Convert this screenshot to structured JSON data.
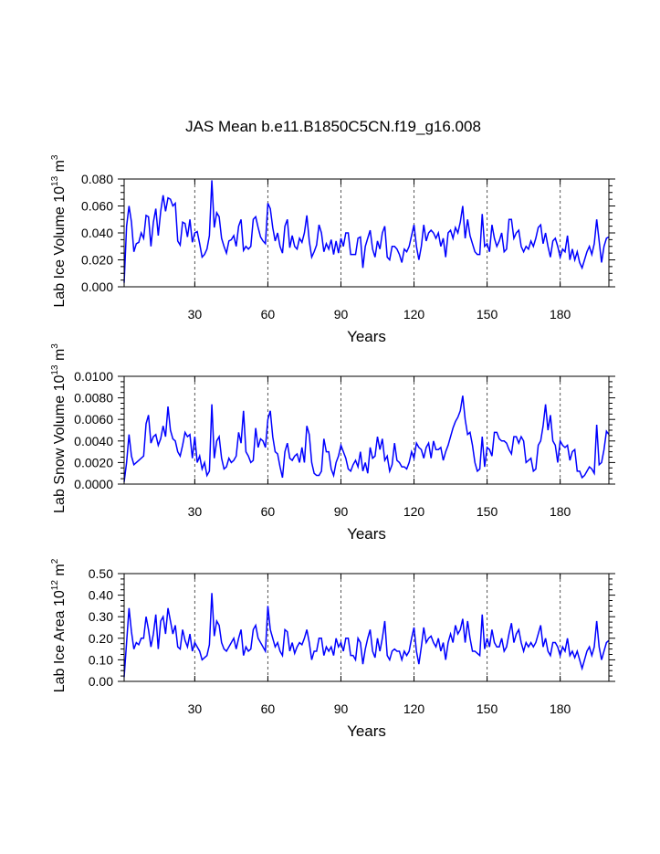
{
  "title": "JAS Mean b.e11.B1850C5CN.f19_g16.008",
  "colors": {
    "series": "#0000ff",
    "axis": "#000000",
    "grid": "#555555"
  },
  "chart_data": [
    {
      "type": "line",
      "ylabel_main": "Lab Ice Volume 10",
      "ylabel_exp": "13",
      "ylabel_unit": " m",
      "ylabel_unit_exp": "3",
      "xlabel": "Years",
      "xlim": [
        1,
        200
      ],
      "ylim": [
        0,
        0.08
      ],
      "xticks": [
        30,
        60,
        90,
        120,
        150,
        180
      ],
      "xtick_labels": [
        "30",
        "60",
        "90",
        "120",
        "150",
        "180"
      ],
      "yticks": [
        0,
        0.02,
        0.04,
        0.06,
        0.08
      ],
      "ytick_labels": [
        "0.000",
        "0.020",
        "0.040",
        "0.060",
        "0.080"
      ],
      "grid": "vertical dashed at x ticks",
      "series": [
        {
          "name": "Lab Ice Volume",
          "values": [
            0.003,
            0.045,
            0.06,
            0.048,
            0.026,
            0.032,
            0.033,
            0.04,
            0.036,
            0.053,
            0.052,
            0.03,
            0.048,
            0.058,
            0.038,
            0.056,
            0.068,
            0.056,
            0.066,
            0.065,
            0.06,
            0.062,
            0.034,
            0.031,
            0.048,
            0.047,
            0.037,
            0.05,
            0.033,
            0.04,
            0.041,
            0.032,
            0.022,
            0.024,
            0.028,
            0.038,
            0.079,
            0.044,
            0.055,
            0.052,
            0.036,
            0.03,
            0.025,
            0.034,
            0.035,
            0.038,
            0.03,
            0.045,
            0.05,
            0.027,
            0.03,
            0.028,
            0.03,
            0.05,
            0.052,
            0.044,
            0.037,
            0.034,
            0.032,
            0.062,
            0.058,
            0.044,
            0.034,
            0.04,
            0.03,
            0.025,
            0.045,
            0.05,
            0.029,
            0.038,
            0.03,
            0.028,
            0.036,
            0.033,
            0.04,
            0.053,
            0.034,
            0.022,
            0.026,
            0.031,
            0.046,
            0.04,
            0.026,
            0.032,
            0.028,
            0.035,
            0.024,
            0.034,
            0.025,
            0.036,
            0.03,
            0.04,
            0.04,
            0.024,
            0.024,
            0.024,
            0.036,
            0.037,
            0.014,
            0.03,
            0.036,
            0.042,
            0.028,
            0.022,
            0.034,
            0.028,
            0.04,
            0.045,
            0.022,
            0.02,
            0.03,
            0.03,
            0.028,
            0.024,
            0.018,
            0.028,
            0.026,
            0.03,
            0.038,
            0.046,
            0.03,
            0.02,
            0.03,
            0.046,
            0.034,
            0.04,
            0.042,
            0.04,
            0.036,
            0.04,
            0.03,
            0.036,
            0.022,
            0.04,
            0.042,
            0.036,
            0.044,
            0.04,
            0.048,
            0.06,
            0.036,
            0.05,
            0.038,
            0.032,
            0.026,
            0.024,
            0.024,
            0.054,
            0.03,
            0.032,
            0.026,
            0.046,
            0.036,
            0.03,
            0.034,
            0.04,
            0.026,
            0.028,
            0.05,
            0.05,
            0.036,
            0.04,
            0.042,
            0.03,
            0.026,
            0.03,
            0.028,
            0.034,
            0.03,
            0.036,
            0.044,
            0.046,
            0.032,
            0.04,
            0.03,
            0.022,
            0.034,
            0.036,
            0.03,
            0.022,
            0.028,
            0.026,
            0.038,
            0.02,
            0.028,
            0.02,
            0.026,
            0.018,
            0.014,
            0.02,
            0.026,
            0.03,
            0.024,
            0.032,
            0.05,
            0.034,
            0.018,
            0.03,
            0.036,
            0.037
          ]
        }
      ]
    },
    {
      "type": "line",
      "ylabel_main": "Lab Snow Volume 10",
      "ylabel_exp": "13",
      "ylabel_unit": " m",
      "ylabel_unit_exp": "3",
      "xlabel": "Years",
      "xlim": [
        1,
        200
      ],
      "ylim": [
        0,
        0.01
      ],
      "xticks": [
        30,
        60,
        90,
        120,
        150,
        180
      ],
      "xtick_labels": [
        "30",
        "60",
        "90",
        "120",
        "150",
        "180"
      ],
      "yticks": [
        0,
        0.002,
        0.004,
        0.006,
        0.008,
        0.01
      ],
      "ytick_labels": [
        "0.0000",
        "0.0020",
        "0.0040",
        "0.0060",
        "0.0080",
        "0.0100"
      ],
      "grid": "vertical dashed at x ticks",
      "series": [
        {
          "name": "Lab Snow Volume",
          "values": [
            0.0002,
            0.002,
            0.0046,
            0.0026,
            0.0018,
            0.002,
            0.0022,
            0.0024,
            0.0026,
            0.0056,
            0.0064,
            0.0038,
            0.0044,
            0.0046,
            0.0036,
            0.0042,
            0.0054,
            0.0044,
            0.0072,
            0.005,
            0.0042,
            0.004,
            0.003,
            0.0026,
            0.0036,
            0.0048,
            0.0044,
            0.0046,
            0.0024,
            0.0044,
            0.002,
            0.0026,
            0.0014,
            0.002,
            0.0008,
            0.0012,
            0.0074,
            0.0024,
            0.004,
            0.0044,
            0.0024,
            0.0014,
            0.0016,
            0.0024,
            0.002,
            0.0022,
            0.0026,
            0.0048,
            0.0038,
            0.0068,
            0.003,
            0.0026,
            0.002,
            0.0022,
            0.0052,
            0.0034,
            0.0042,
            0.004,
            0.0034,
            0.006,
            0.0068,
            0.0044,
            0.003,
            0.0028,
            0.0016,
            0.0006,
            0.003,
            0.0038,
            0.0024,
            0.0022,
            0.0026,
            0.0028,
            0.002,
            0.0034,
            0.002,
            0.0054,
            0.0046,
            0.002,
            0.001,
            0.0008,
            0.0008,
            0.0012,
            0.0042,
            0.003,
            0.003,
            0.0014,
            0.0008,
            0.002,
            0.0026,
            0.0036,
            0.003,
            0.0024,
            0.0014,
            0.0012,
            0.0018,
            0.0022,
            0.0016,
            0.003,
            0.0012,
            0.002,
            0.001,
            0.0034,
            0.0024,
            0.0026,
            0.0044,
            0.0032,
            0.0042,
            0.0022,
            0.0026,
            0.0012,
            0.0018,
            0.0038,
            0.0022,
            0.002,
            0.0016,
            0.0016,
            0.0014,
            0.002,
            0.003,
            0.0024,
            0.0038,
            0.0034,
            0.0032,
            0.0024,
            0.0034,
            0.0038,
            0.0024,
            0.004,
            0.0032,
            0.0032,
            0.0034,
            0.0022,
            0.003,
            0.0036,
            0.0044,
            0.0052,
            0.0058,
            0.0062,
            0.0068,
            0.0082,
            0.006,
            0.0046,
            0.0048,
            0.0036,
            0.002,
            0.0012,
            0.0014,
            0.0044,
            0.0016,
            0.0034,
            0.0032,
            0.0026,
            0.0048,
            0.0048,
            0.0042,
            0.004,
            0.004,
            0.0038,
            0.0032,
            0.0028,
            0.0044,
            0.0044,
            0.0038,
            0.0044,
            0.004,
            0.002,
            0.0022,
            0.0024,
            0.0012,
            0.0014,
            0.0036,
            0.004,
            0.0054,
            0.0074,
            0.005,
            0.0064,
            0.004,
            0.0036,
            0.002,
            0.004,
            0.0036,
            0.0034,
            0.0036,
            0.0022,
            0.003,
            0.0032,
            0.0012,
            0.0012,
            0.0006,
            0.0008,
            0.0012,
            0.0016,
            0.0014,
            0.001,
            0.0055,
            0.0018,
            0.002,
            0.0032,
            0.0049,
            0.0046
          ]
        }
      ]
    },
    {
      "type": "line",
      "ylabel_main": "Lab Ice Area 10",
      "ylabel_exp": "12",
      "ylabel_unit": " m",
      "ylabel_unit_exp": "2",
      "xlabel": "Years",
      "xlim": [
        1,
        200
      ],
      "ylim": [
        0,
        0.5
      ],
      "xticks": [
        30,
        60,
        90,
        120,
        150,
        180
      ],
      "xtick_labels": [
        "30",
        "60",
        "90",
        "120",
        "150",
        "180"
      ],
      "yticks": [
        0,
        0.1,
        0.2,
        0.3,
        0.4,
        0.5
      ],
      "ytick_labels": [
        "0.00",
        "0.10",
        "0.20",
        "0.30",
        "0.40",
        "0.50"
      ],
      "grid": "vertical dashed at x ticks",
      "series": [
        {
          "name": "Lab Ice Area",
          "values": [
            0.02,
            0.18,
            0.34,
            0.23,
            0.15,
            0.18,
            0.17,
            0.2,
            0.2,
            0.3,
            0.24,
            0.16,
            0.22,
            0.31,
            0.15,
            0.28,
            0.3,
            0.22,
            0.34,
            0.28,
            0.22,
            0.26,
            0.16,
            0.15,
            0.24,
            0.19,
            0.16,
            0.22,
            0.14,
            0.18,
            0.16,
            0.14,
            0.1,
            0.11,
            0.12,
            0.17,
            0.41,
            0.21,
            0.28,
            0.26,
            0.18,
            0.15,
            0.14,
            0.16,
            0.18,
            0.2,
            0.15,
            0.2,
            0.24,
            0.12,
            0.16,
            0.14,
            0.15,
            0.24,
            0.26,
            0.2,
            0.18,
            0.16,
            0.14,
            0.35,
            0.24,
            0.2,
            0.16,
            0.18,
            0.14,
            0.12,
            0.24,
            0.23,
            0.14,
            0.18,
            0.13,
            0.16,
            0.18,
            0.17,
            0.2,
            0.24,
            0.18,
            0.1,
            0.14,
            0.14,
            0.2,
            0.2,
            0.12,
            0.16,
            0.14,
            0.16,
            0.12,
            0.2,
            0.16,
            0.18,
            0.14,
            0.2,
            0.2,
            0.12,
            0.12,
            0.1,
            0.2,
            0.18,
            0.08,
            0.15,
            0.2,
            0.24,
            0.14,
            0.11,
            0.2,
            0.14,
            0.2,
            0.28,
            0.12,
            0.1,
            0.14,
            0.15,
            0.14,
            0.14,
            0.1,
            0.14,
            0.12,
            0.14,
            0.2,
            0.25,
            0.14,
            0.08,
            0.16,
            0.25,
            0.18,
            0.2,
            0.21,
            0.18,
            0.16,
            0.2,
            0.14,
            0.18,
            0.1,
            0.18,
            0.22,
            0.18,
            0.26,
            0.22,
            0.24,
            0.29,
            0.18,
            0.28,
            0.2,
            0.14,
            0.14,
            0.13,
            0.12,
            0.31,
            0.15,
            0.2,
            0.16,
            0.24,
            0.18,
            0.16,
            0.16,
            0.2,
            0.14,
            0.16,
            0.22,
            0.27,
            0.18,
            0.22,
            0.24,
            0.18,
            0.14,
            0.18,
            0.16,
            0.18,
            0.16,
            0.18,
            0.22,
            0.26,
            0.16,
            0.2,
            0.14,
            0.12,
            0.18,
            0.18,
            0.16,
            0.12,
            0.16,
            0.14,
            0.2,
            0.12,
            0.14,
            0.11,
            0.14,
            0.1,
            0.06,
            0.1,
            0.14,
            0.16,
            0.12,
            0.16,
            0.28,
            0.16,
            0.1,
            0.14,
            0.18,
            0.19
          ]
        }
      ]
    }
  ]
}
